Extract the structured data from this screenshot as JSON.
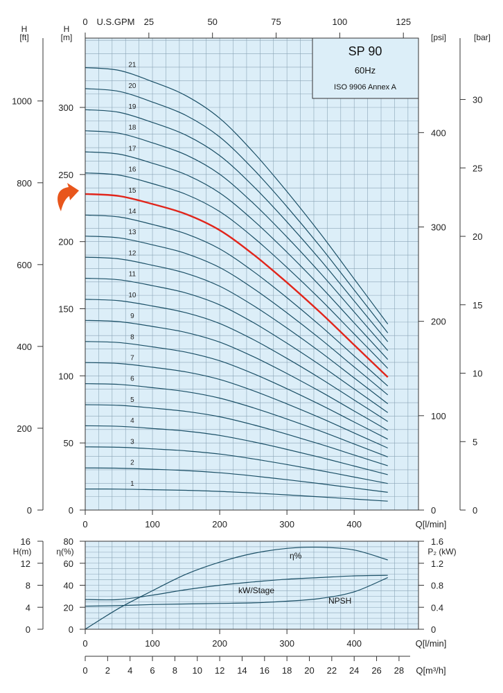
{
  "colors": {
    "plot_bg": "#dceef8",
    "grid": "#8aa4b6",
    "curve": "#1a4f66",
    "highlight": "#e1251b",
    "arrow": "#e8561c",
    "axis": "#333333"
  },
  "legend_box": {
    "title": "SP 90",
    "frequency": "60Hz",
    "standard": "ISO 9906 Annex A"
  },
  "top_chart": {
    "left_axis_ft": {
      "label_line1": "H",
      "label_line2": "[ft]",
      "ticks": [
        0,
        200,
        400,
        600,
        800,
        1000
      ],
      "tick_labels": [
        "0",
        "200",
        "400",
        "600",
        "800",
        "1000"
      ]
    },
    "left_axis_m": {
      "label_line1": "H",
      "label_line2": "[m]",
      "ticks": [
        0,
        50,
        100,
        150,
        200,
        250,
        300
      ],
      "tick_labels": [
        "0",
        "50",
        "100",
        "150",
        "200",
        "250",
        "300"
      ]
    },
    "top_axis_gpm": {
      "label": "U.S.GPM",
      "ticks": [
        0,
        25,
        50,
        75,
        100,
        125
      ],
      "tick_labels": [
        "0",
        "25",
        "50",
        "75",
        "100",
        "125"
      ]
    },
    "right_axis_psi": {
      "label": "[psi]",
      "ticks": [
        0,
        100,
        200,
        300,
        400
      ],
      "tick_labels": [
        "0",
        "100",
        "200",
        "300",
        "400"
      ]
    },
    "right_axis_bar": {
      "label": "[bar]",
      "ticks": [
        0,
        5,
        10,
        15,
        20,
        25,
        30
      ],
      "tick_labels": [
        "0",
        "5",
        "10",
        "15",
        "20",
        "25",
        "30"
      ]
    },
    "x_axis": {
      "label": "Q[l/min]",
      "ticks": [
        0,
        100,
        200,
        300,
        400
      ],
      "tick_labels": [
        "0",
        "100",
        "200",
        "300",
        "400"
      ]
    }
  },
  "bottom_chart": {
    "npsh_axis": {
      "label": "H(m)",
      "ticks": [
        0,
        4,
        8,
        12,
        16
      ],
      "tick_labels": [
        "0",
        "4",
        "8",
        "12",
        "16"
      ]
    },
    "eff_axis": {
      "label": "η(%)",
      "ticks": [
        0,
        20,
        40,
        60,
        80
      ],
      "tick_labels": [
        "0",
        "20",
        "40",
        "60",
        "80"
      ]
    },
    "power_axis": {
      "label": "P₂ (kW)",
      "ticks": [
        0,
        0.4,
        0.8,
        1.2,
        1.6
      ],
      "tick_labels": [
        "0",
        "0.4",
        "0.8",
        "1.2",
        "1.6"
      ]
    },
    "x_axis": {
      "label": "Q[l/min]",
      "ticks": [
        0,
        100,
        200,
        300,
        400
      ],
      "tick_labels": [
        "0",
        "100",
        "200",
        "300",
        "400"
      ]
    },
    "m3h_axis": {
      "label": "Q[m³/h]",
      "ticks": [
        0,
        2,
        4,
        6,
        8,
        10,
        12,
        14,
        16,
        18,
        20,
        22,
        24,
        26,
        28
      ],
      "tick_labels": [
        "0",
        "2",
        "4",
        "6",
        "8",
        "10",
        "12",
        "14",
        "16",
        "18",
        "20",
        "22",
        "24",
        "26",
        "28"
      ]
    },
    "curve_labels": {
      "efficiency": "η%",
      "power": "kW/Stage",
      "npsh": "NPSH"
    }
  },
  "chart_data": [
    {
      "type": "line",
      "title": "SP 90",
      "subtitle": "60Hz",
      "xlabel": "Q[l/min]",
      "ylabel": "H [m]",
      "xlim": [
        0,
        500
      ],
      "ylim": [
        0,
        350
      ],
      "highlighted_curve": "15",
      "x": [
        0,
        50,
        100,
        150,
        200,
        250,
        300,
        350,
        400,
        450
      ],
      "stage_head_profile_m": [
        15.7,
        15.6,
        15.2,
        14.7,
        13.9,
        12.7,
        11.3,
        9.8,
        8.2,
        6.6
      ],
      "series": [
        {
          "name": "1",
          "values": [
            15.7,
            15.6,
            15.2,
            14.7,
            13.9,
            12.7,
            11.3,
            9.8,
            8.2,
            6.6
          ]
        },
        {
          "name": "2",
          "values": [
            31.4,
            31.2,
            30.4,
            29.4,
            27.8,
            25.4,
            22.6,
            19.6,
            16.4,
            13.2
          ]
        },
        {
          "name": "3",
          "values": [
            47.1,
            46.8,
            45.6,
            44.1,
            41.7,
            38.1,
            33.9,
            29.4,
            24.6,
            19.8
          ]
        },
        {
          "name": "4",
          "values": [
            62.8,
            62.4,
            60.8,
            58.8,
            55.6,
            50.8,
            45.2,
            39.2,
            32.8,
            26.4
          ]
        },
        {
          "name": "5",
          "values": [
            78.5,
            78.0,
            76.0,
            73.5,
            69.5,
            63.5,
            56.5,
            49.0,
            41.0,
            33.0
          ]
        },
        {
          "name": "6",
          "values": [
            94.2,
            93.6,
            91.2,
            88.2,
            83.4,
            76.2,
            67.8,
            58.8,
            49.2,
            39.6
          ]
        },
        {
          "name": "7",
          "values": [
            109.9,
            109.2,
            106.4,
            102.9,
            97.3,
            88.9,
            79.1,
            68.6,
            57.4,
            46.2
          ]
        },
        {
          "name": "8",
          "values": [
            125.6,
            124.8,
            121.6,
            117.6,
            111.2,
            101.6,
            90.4,
            78.4,
            65.6,
            52.8
          ]
        },
        {
          "name": "9",
          "values": [
            141.3,
            140.4,
            136.8,
            132.3,
            125.1,
            114.3,
            101.7,
            88.2,
            73.8,
            59.4
          ]
        },
        {
          "name": "10",
          "values": [
            157.0,
            156.0,
            152.0,
            147.0,
            139.0,
            127.0,
            113.0,
            98.0,
            82.0,
            66.0
          ]
        },
        {
          "name": "11",
          "values": [
            172.7,
            171.6,
            167.2,
            161.7,
            152.9,
            139.7,
            124.3,
            107.8,
            90.2,
            72.6
          ]
        },
        {
          "name": "12",
          "values": [
            188.4,
            187.2,
            182.4,
            176.4,
            166.8,
            152.4,
            135.6,
            117.6,
            98.4,
            79.2
          ]
        },
        {
          "name": "13",
          "values": [
            204.1,
            202.8,
            197.6,
            191.1,
            180.7,
            165.1,
            146.9,
            127.4,
            106.6,
            85.8
          ]
        },
        {
          "name": "14",
          "values": [
            219.8,
            218.4,
            212.8,
            205.8,
            194.6,
            177.8,
            158.2,
            137.2,
            114.8,
            92.4
          ]
        },
        {
          "name": "15",
          "values": [
            235.5,
            234.0,
            228.0,
            220.5,
            208.5,
            190.5,
            169.5,
            147.0,
            123.0,
            99.0
          ]
        },
        {
          "name": "16",
          "values": [
            251.2,
            249.6,
            243.2,
            235.2,
            222.4,
            203.2,
            180.8,
            156.8,
            131.2,
            105.6
          ]
        },
        {
          "name": "17",
          "values": [
            266.9,
            265.2,
            258.4,
            249.9,
            236.3,
            215.9,
            192.1,
            166.6,
            139.4,
            112.2
          ]
        },
        {
          "name": "18",
          "values": [
            282.6,
            280.8,
            273.6,
            264.6,
            250.2,
            228.6,
            203.4,
            176.4,
            147.6,
            118.8
          ]
        },
        {
          "name": "19",
          "values": [
            298.3,
            296.4,
            288.8,
            279.3,
            264.1,
            241.3,
            214.7,
            186.2,
            155.8,
            125.4
          ]
        },
        {
          "name": "20",
          "values": [
            314.0,
            312.0,
            304.0,
            294.0,
            278.0,
            254.0,
            226.0,
            196.0,
            164.0,
            132.0
          ]
        },
        {
          "name": "21",
          "values": [
            329.7,
            327.6,
            319.2,
            308.7,
            291.9,
            266.7,
            237.3,
            205.8,
            172.2,
            138.6
          ]
        }
      ]
    },
    {
      "type": "line",
      "xlabel": "Q[l/min]",
      "xlim": [
        0,
        500
      ],
      "series": [
        {
          "name": "η%",
          "axis": "η(%)",
          "ylim": [
            0,
            80
          ],
          "x": [
            0,
            50,
            100,
            150,
            200,
            250,
            300,
            350,
            400,
            450
          ],
          "values": [
            0,
            19,
            35,
            50,
            61,
            69,
            73.5,
            74.5,
            72,
            63
          ]
        },
        {
          "name": "kW/Stage",
          "axis": "P₂ (kW)",
          "ylim": [
            0,
            1.6
          ],
          "x": [
            0,
            50,
            100,
            150,
            200,
            250,
            300,
            350,
            400,
            450
          ],
          "values": [
            0.54,
            0.54,
            0.62,
            0.72,
            0.8,
            0.86,
            0.91,
            0.94,
            0.97,
            0.98
          ]
        },
        {
          "name": "NPSH",
          "axis": "H(m)",
          "ylim": [
            0,
            16
          ],
          "x": [
            0,
            50,
            100,
            150,
            200,
            250,
            300,
            350,
            400,
            450
          ],
          "values": [
            4.2,
            4.3,
            4.5,
            4.6,
            4.7,
            4.8,
            5.1,
            5.6,
            6.8,
            9.4
          ]
        }
      ]
    }
  ]
}
